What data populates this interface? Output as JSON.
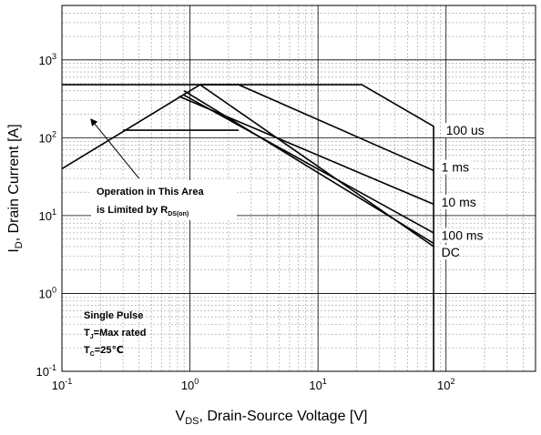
{
  "chart_data": {
    "type": "line",
    "title": "",
    "x_axis": {
      "label_main": "V",
      "label_sub": "DS",
      "label_rest": ", Drain-Source Voltage [V]",
      "scale": "log",
      "range": [
        0.1,
        500
      ],
      "ticks": [
        {
          "value": 0.1,
          "base": "10",
          "exp": "-1"
        },
        {
          "value": 1,
          "base": "10",
          "exp": "0"
        },
        {
          "value": 10,
          "base": "10",
          "exp": "1"
        },
        {
          "value": 100,
          "base": "10",
          "exp": "2"
        }
      ]
    },
    "y_axis": {
      "label_main": "I",
      "label_sub": "D",
      "label_rest": ", Drain Current [A]",
      "scale": "log",
      "range": [
        0.1,
        5000
      ],
      "ticks": [
        {
          "value": 0.1,
          "base": "10",
          "exp": "-1"
        },
        {
          "value": 1,
          "base": "10",
          "exp": "0"
        },
        {
          "value": 10,
          "base": "10",
          "exp": "1"
        },
        {
          "value": 100,
          "base": "10",
          "exp": "2"
        },
        {
          "value": 1000,
          "base": "10",
          "exp": "3"
        }
      ]
    },
    "grid": true,
    "series": [
      {
        "name": "100 us",
        "points": [
          [
            0.1,
            40
          ],
          [
            1.2,
            480
          ],
          [
            22,
            480
          ],
          [
            80,
            140
          ],
          [
            80,
            0.1
          ]
        ]
      },
      {
        "name": "1 ms",
        "points": [
          [
            1.2,
            480
          ],
          [
            2.4,
            480
          ],
          [
            80,
            38
          ]
        ]
      },
      {
        "name": "10 ms",
        "points": [
          [
            0.82,
            340
          ],
          [
            80,
            14
          ]
        ]
      },
      {
        "name": "100 ms",
        "points": [
          [
            0.88,
            360
          ],
          [
            80,
            6
          ]
        ]
      },
      {
        "name": "DC",
        "points": [
          [
            0.1,
            480
          ],
          [
            1.2,
            480
          ],
          [
            80,
            4
          ]
        ]
      }
    ],
    "extra_lines": [
      {
        "points": [
          [
            0.3,
            125
          ],
          [
            2.4,
            125
          ]
        ]
      },
      {
        "points": [
          [
            0.9,
            400
          ],
          [
            80,
            4.4
          ]
        ]
      }
    ],
    "labels": [
      {
        "text": "100 us",
        "x": 100,
        "y": 125
      },
      {
        "text": "1 ms",
        "x": 92,
        "y": 42
      },
      {
        "text": "10 ms",
        "x": 92,
        "y": 15
      },
      {
        "text": "100 ms",
        "x": 92,
        "y": 5.6
      },
      {
        "text": "DC",
        "x": 92,
        "y": 3.4
      }
    ],
    "annotation": {
      "line1": "Operation in This Area",
      "line2_main": "is Limited by R",
      "line2_sub": "DS(on)",
      "arrow_from": [
        0.4,
        30
      ],
      "arrow_to": [
        0.17,
        170
      ]
    },
    "conditions": {
      "line1": "Single Pulse",
      "line2_main": "T",
      "line2_sub": "J",
      "line2_rest": "=Max rated",
      "line3_main": "T",
      "line3_sub": "C",
      "line3_rest": "=25℃"
    }
  }
}
